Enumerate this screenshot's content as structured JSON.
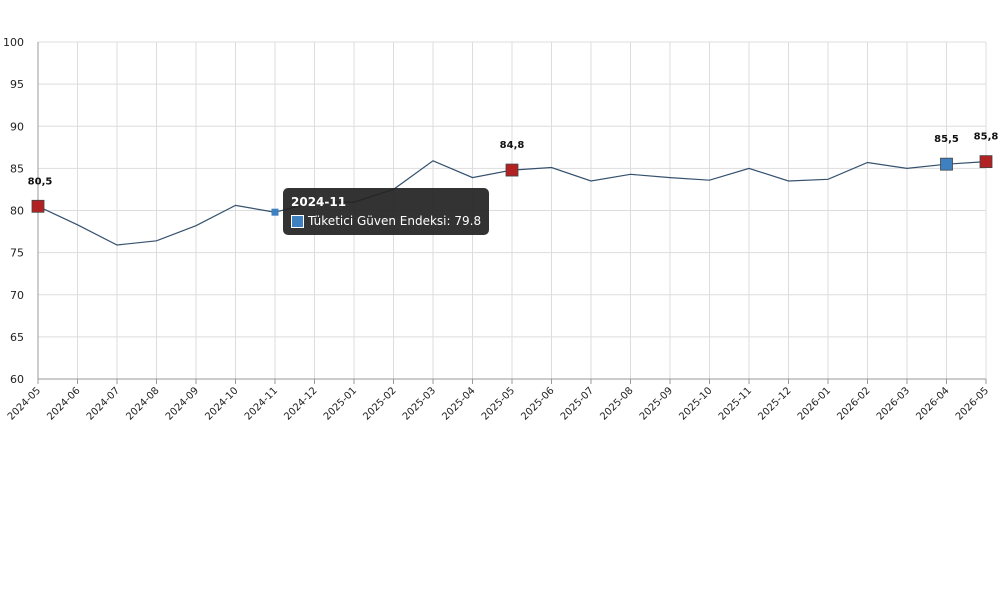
{
  "colors": {
    "line": "#35516e",
    "marker_red": "#b22222",
    "marker_blue": "#3f80c0",
    "tooltip_bg": "#222222"
  },
  "chart_data": {
    "type": "line",
    "ylim": [
      60,
      100
    ],
    "yticks": [
      60,
      65,
      70,
      75,
      80,
      85,
      90,
      95,
      100
    ],
    "grid": true,
    "categories": [
      "2024-05",
      "2024-06",
      "2024-07",
      "2024-08",
      "2024-09",
      "2024-10",
      "2024-11",
      "2024-12",
      "2025-01",
      "2025-02",
      "2025-03",
      "2025-04",
      "2025-05",
      "2025-06",
      "2025-07",
      "2025-08",
      "2025-09",
      "2025-10",
      "2025-11",
      "2025-12",
      "2026-01",
      "2026-02",
      "2026-03",
      "2026-04",
      "2026-05"
    ],
    "series": [
      {
        "name": "Tüketici Güven Endeksi",
        "values": [
          80.5,
          78.3,
          75.9,
          76.4,
          78.2,
          80.6,
          79.8,
          81.0,
          81.0,
          82.5,
          85.9,
          83.9,
          84.8,
          85.1,
          83.5,
          84.3,
          83.9,
          83.6,
          85.0,
          83.5,
          83.7,
          85.7,
          85.0,
          85.5,
          85.8
        ]
      }
    ],
    "highlights": [
      {
        "index": 0,
        "label": "80,5",
        "color": "red"
      },
      {
        "index": 12,
        "label": "84,8",
        "color": "red"
      },
      {
        "index": 23,
        "label": "85,5",
        "color": "blue"
      },
      {
        "index": 24,
        "label": "85,8",
        "color": "red"
      }
    ],
    "tooltip": {
      "index": 6,
      "title": "2024-11",
      "text": "Tüketici Güven Endeksi: 79.8"
    }
  }
}
